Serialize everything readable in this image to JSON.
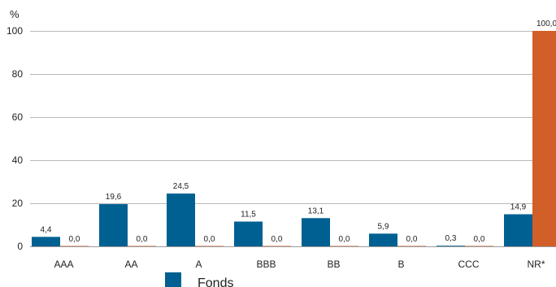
{
  "chart_data": {
    "type": "bar",
    "ylabel": "%",
    "ylim": [
      0,
      100
    ],
    "yticks": [
      0,
      20,
      40,
      60,
      80,
      100
    ],
    "grid": true,
    "legend_position": "bottom-left",
    "categories": [
      "AAA",
      "AA",
      "A",
      "BBB",
      "BB",
      "B",
      "CCC",
      "NR*"
    ],
    "series": [
      {
        "name": "Fonds",
        "color": "#006092",
        "values": [
          4.4,
          19.6,
          24.5,
          11.5,
          13.1,
          5.9,
          0.3,
          14.9
        ],
        "labels": [
          "4,4",
          "19,6",
          "24,5",
          "11,5",
          "13,1",
          "5,9",
          "0,3",
          "14,9"
        ]
      },
      {
        "color": "#d25f27",
        "values": [
          0.0,
          0.0,
          0.0,
          0.0,
          0.0,
          0.0,
          0.0,
          100.0
        ],
        "labels": [
          "0,0",
          "0,0",
          "0,0",
          "0,0",
          "0,0",
          "0,0",
          "0,0",
          "100,0"
        ]
      }
    ]
  }
}
